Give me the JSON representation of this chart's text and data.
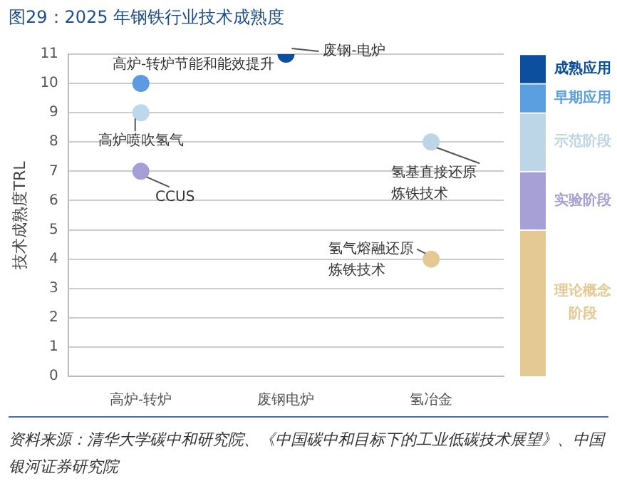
{
  "chart_data": [
    {
      "type": "scatter",
      "title": "图29：2025 年钢铁行业技术成熟度",
      "ylabel": "技术成熟度TRL",
      "categories": [
        "高炉-转炉",
        "废钢电炉",
        "氢冶金"
      ],
      "series": [
        {
          "type": "scatter",
          "x": [
            "高炉-转炉",
            "高炉-转炉",
            "高炉-转炉",
            "废钢电炉",
            "氢冶金",
            "氢冶金"
          ],
          "values": [
            10,
            9,
            7,
            11,
            8,
            4
          ],
          "colors": [
            "#5b9be0",
            "#bcd8ea",
            "#a49fd6",
            "#0b4f9e",
            "#bcd6e8",
            "#e4c995"
          ]
        }
      ],
      "ylim": [
        0,
        11
      ],
      "yticks": [
        0,
        1,
        2,
        3,
        4,
        5,
        6,
        7,
        8,
        9,
        10,
        11
      ],
      "grid": "y",
      "marker": "circle",
      "annotations": [
        {
          "text": "高炉-转炉节能和能效提升",
          "x": "高炉-转炉",
          "y": 10
        },
        {
          "text": "高炉喷吹氢气",
          "x": "高炉-转炉",
          "y": 9
        },
        {
          "text": "CCUS",
          "x": "高炉-转炉",
          "y": 7
        },
        {
          "text": "废钢-电炉",
          "x": "废钢电炉",
          "y": 11
        },
        {
          "text": "氢基直接还原炼铁技术",
          "x": "氢冶金",
          "y": 8
        },
        {
          "text": "氢气熔融还原炼铁技术",
          "x": "氢冶金",
          "y": 4
        },
        "资料来源：清华大学碳中和研究院、《中国碳中和目标下的工业低碳技术展望》、中国银河证券研究院"
      ]
    },
    {
      "type": "bar",
      "stacked": true,
      "categories": [
        null
      ],
      "ylim": [
        0,
        11
      ],
      "tick_labels": false,
      "series": [
        {
          "name": "理论概念阶段",
          "color": "#e4c995",
          "values": [
            5
          ]
        },
        {
          "name": "实验阶段",
          "color": "#a7a0d6",
          "values": [
            2
          ]
        },
        {
          "name": "示范阶段",
          "color": "#bcd6e8",
          "values": [
            2
          ]
        },
        {
          "name": "早期应用",
          "color": "#5b9fe0",
          "values": [
            1
          ]
        },
        {
          "name": "成熟应用",
          "color": "#0b4f9e",
          "values": [
            1
          ]
        }
      ]
    }
  ]
}
